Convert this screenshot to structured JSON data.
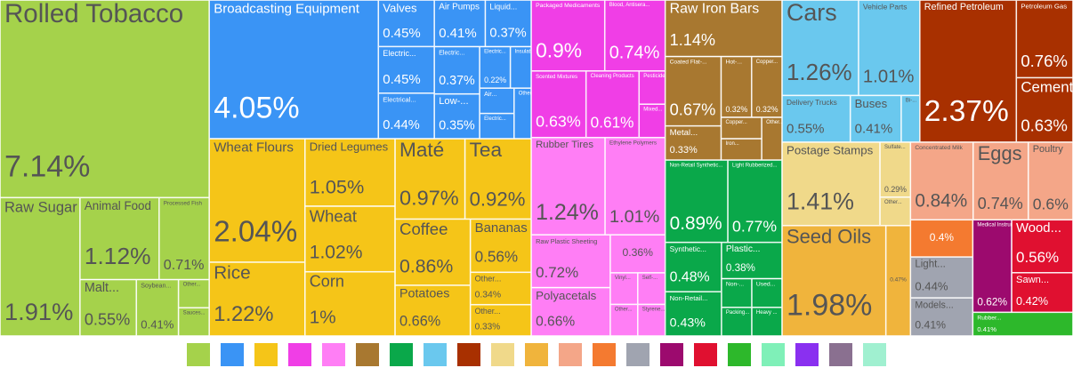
{
  "chart_data": {
    "type": "treemap",
    "legend_colors": [
      "#a5d24b",
      "#3a94f5",
      "#f5c518",
      "#f03ee6",
      "#ff7ef5",
      "#a87830",
      "#0aa84a",
      "#6ac8ee",
      "#a83000",
      "#f0d98a",
      "#f0b43c",
      "#f4a688",
      "#f47a30",
      "#a0a4b0",
      "#9c0a6e",
      "#e01030",
      "#2db82b",
      "#7ff0b8",
      "#8a30f0",
      "#8a7090",
      "#a0f0d0"
    ],
    "groups": [
      {
        "color": "#a5d24b",
        "items": [
          {
            "name": "Rolled Tobacco",
            "value": 7.14,
            "value_label": "7.14%"
          },
          {
            "name": "Raw Sugar",
            "value": 1.91,
            "value_label": "1.91%"
          },
          {
            "name": "Animal Food",
            "value": 1.12,
            "value_label": "1.12%"
          },
          {
            "name": "Processed Fish",
            "value": 0.71,
            "value_label": "0.71%"
          },
          {
            "name": "Malt...",
            "value": 0.55,
            "value_label": "0.55%"
          },
          {
            "name": "Soybean...",
            "value": 0.41,
            "value_label": "0.41%"
          },
          {
            "name": "Other..."
          },
          {
            "name": "Sauces..."
          }
        ]
      },
      {
        "color": "#3a94f5",
        "items": [
          {
            "name": "Broadcasting Equipment",
            "value": 4.05,
            "value_label": "4.05%"
          },
          {
            "name": "Valves",
            "value": 0.45,
            "value_label": "0.45%"
          },
          {
            "name": "Electric...",
            "value": 0.45,
            "value_label": "0.45%"
          },
          {
            "name": "Electrical...",
            "value": 0.44,
            "value_label": "0.44%"
          },
          {
            "name": "Air Pumps",
            "value": 0.41,
            "value_label": "0.41%"
          },
          {
            "name": "Liquid...",
            "value": 0.37,
            "value_label": "0.37%"
          },
          {
            "name": "Electric...",
            "value": 0.37,
            "value_label": "0.37%"
          },
          {
            "name": "Low-...",
            "value": 0.35,
            "value_label": "0.35%"
          },
          {
            "name": "Electric...",
            "value": 0.22,
            "value_label": "0.22%"
          },
          {
            "name": "Insulated Wire"
          },
          {
            "name": "Air..."
          },
          {
            "name": "Electric..."
          },
          {
            "name": "Other..."
          }
        ]
      },
      {
        "color": "#f5c518",
        "items": [
          {
            "name": "Wheat Flours",
            "value": 2.04,
            "value_label": "2.04%"
          },
          {
            "name": "Rice",
            "value": 1.22,
            "value_label": "1.22%"
          },
          {
            "name": "Dried Legumes",
            "value": 1.05,
            "value_label": "1.05%"
          },
          {
            "name": "Wheat",
            "value": 1.02,
            "value_label": "1.02%"
          },
          {
            "name": "Corn",
            "value": 1,
            "value_label": "1%"
          },
          {
            "name": "Maté",
            "value": 0.97,
            "value_label": "0.97%"
          },
          {
            "name": "Tea",
            "value": 0.92,
            "value_label": "0.92%"
          },
          {
            "name": "Coffee",
            "value": 0.86,
            "value_label": "0.86%"
          },
          {
            "name": "Potatoes",
            "value": 0.66,
            "value_label": "0.66%"
          },
          {
            "name": "Bananas",
            "value": 0.56,
            "value_label": "0.56%"
          },
          {
            "name": "Other...",
            "value": 0.34,
            "value_label": "0.34%"
          },
          {
            "name": "Other...",
            "value": 0.33,
            "value_label": "0.33%"
          }
        ]
      },
      {
        "color": "#f03ee6",
        "items": [
          {
            "name": "Packaged Medicaments",
            "value": 0.9,
            "value_label": "0.9%"
          },
          {
            "name": "Blood, Antisera...",
            "value": 0.74,
            "value_label": "0.74%"
          },
          {
            "name": "Scented Mixtures",
            "value": 0.63,
            "value_label": "0.63%"
          },
          {
            "name": "Cleaning Products",
            "value": 0.61,
            "value_label": "0.61%"
          },
          {
            "name": "Pesticides"
          },
          {
            "name": "Mixed..."
          }
        ]
      },
      {
        "color": "#ff7ef5",
        "items": [
          {
            "name": "Rubber Tires",
            "value": 1.24,
            "value_label": "1.24%"
          },
          {
            "name": "Ethylene Polymers",
            "value": 1.01,
            "value_label": "1.01%"
          },
          {
            "name": "Raw Plastic Sheeting",
            "value": 0.72,
            "value_label": "0.72%"
          },
          {
            "name": "Polyacetals",
            "value": 0.66,
            "value_label": "0.66%"
          },
          {
            "value": 0.36,
            "value_label": "0.36%"
          },
          {
            "name": "Vinyl..."
          },
          {
            "name": "Self-..."
          },
          {
            "name": "Other..."
          },
          {
            "name": "Styrene..."
          }
        ]
      },
      {
        "color": "#a87830",
        "items": [
          {
            "name": "Raw Iron Bars",
            "value": 1.14,
            "value_label": "1.14%"
          },
          {
            "name": "Coated Flat-...",
            "value": 0.67,
            "value_label": "0.67%"
          },
          {
            "name": "Metal...",
            "value": 0.33,
            "value_label": "0.33%"
          },
          {
            "name": "Hot-...",
            "value": 0.32,
            "value_label": "0.32%"
          },
          {
            "name": "Copper...",
            "value": 0.32,
            "value_label": "0.32%"
          },
          {
            "name": "Copper..."
          },
          {
            "name": "Iron..."
          },
          {
            "name": "Other..."
          }
        ]
      },
      {
        "color": "#0aa84a",
        "items": [
          {
            "name": "Non-Retail Synthetic...",
            "value": 0.89,
            "value_label": "0.89%"
          },
          {
            "name": "Light Rubberized...",
            "value": 0.77,
            "value_label": "0.77%"
          },
          {
            "name": "Synthetic...",
            "value": 0.48,
            "value_label": "0.48%"
          },
          {
            "name": "Non-Retail...",
            "value": 0.43,
            "value_label": "0.43%"
          },
          {
            "name": "Plastic...",
            "value": 0.38,
            "value_label": "0.38%"
          },
          {
            "name": "Non-..."
          },
          {
            "name": "Packing..."
          },
          {
            "name": "Used..."
          },
          {
            "name": "Heavy ..."
          }
        ]
      },
      {
        "color": "#6ac8ee",
        "items": [
          {
            "name": "Cars",
            "value": 1.26,
            "value_label": "1.26%"
          },
          {
            "name": "Vehicle Parts",
            "value": 1.01,
            "value_label": "1.01%"
          },
          {
            "name": "Delivery Trucks",
            "value": 0.55,
            "value_label": "0.55%"
          },
          {
            "name": "Buses",
            "value": 0.41,
            "value_label": "0.41%"
          },
          {
            "name": "Bi-..."
          }
        ]
      },
      {
        "color": "#a83000",
        "items": [
          {
            "name": "Refined Petroleum",
            "value": 2.37,
            "value_label": "2.37%"
          },
          {
            "name": "Petroleum Gas",
            "value": 0.76,
            "value_label": "0.76%"
          },
          {
            "name": "Cement",
            "value": 0.63,
            "value_label": "0.63%"
          }
        ]
      },
      {
        "color": "#f0d98a",
        "items": [
          {
            "name": "Postage Stamps",
            "value": 1.41,
            "value_label": "1.41%"
          },
          {
            "name": "Sulfate...",
            "value": 0.29,
            "value_label": "0.29%"
          },
          {
            "name": "Other..."
          }
        ]
      },
      {
        "color": "#f0b43c",
        "items": [
          {
            "name": "Seed Oils",
            "value": 1.98,
            "value_label": "1.98%"
          },
          {
            "value": 0.47,
            "value_label": "0.47%"
          }
        ]
      },
      {
        "color": "#f4a688",
        "items": [
          {
            "name": "Concentrated Milk",
            "value": 0.84,
            "value_label": "0.84%"
          },
          {
            "name": "Eggs",
            "value": 0.74,
            "value_label": "0.74%"
          },
          {
            "name": "Poultry",
            "value": 0.6,
            "value_label": "0.6%"
          }
        ]
      },
      {
        "color": "#f47a30",
        "items": [
          {
            "value": 0.4,
            "value_label": "0.4%"
          }
        ]
      },
      {
        "color": "#a0a4b0",
        "items": [
          {
            "name": "Light...",
            "value": 0.44,
            "value_label": "0.44%"
          },
          {
            "name": "Models...",
            "value": 0.41,
            "value_label": "0.41%"
          }
        ]
      },
      {
        "color": "#9c0a6e",
        "items": [
          {
            "name": "Medical Instruments",
            "value": 0.62,
            "value_label": "0.62%"
          }
        ]
      },
      {
        "color": "#e01030",
        "items": [
          {
            "name": "Wood...",
            "value": 0.56,
            "value_label": "0.56%"
          },
          {
            "name": "Sawn...",
            "value": 0.42,
            "value_label": "0.42%"
          }
        ]
      },
      {
        "color": "#2db82b",
        "items": [
          {
            "name": "Rubber...",
            "value": 0.41,
            "value_label": "0.41%"
          }
        ]
      }
    ]
  }
}
